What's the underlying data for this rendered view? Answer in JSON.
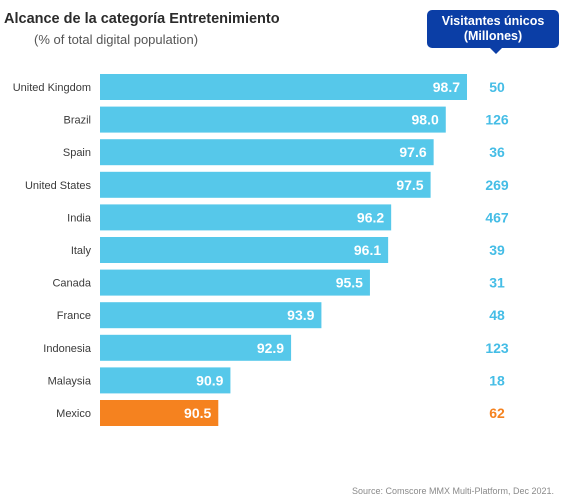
{
  "chart_data": {
    "type": "bar",
    "orientation": "horizontal",
    "title": "Alcance de la categoría Entretenimiento",
    "subtitle": "(% of total digital population)",
    "categories": [
      "United Kingdom",
      "Brazil",
      "Spain",
      "United States",
      "India",
      "Italy",
      "Canada",
      "France",
      "Indonesia",
      "Malaysia",
      "Mexico"
    ],
    "values": [
      98.7,
      98.0,
      97.6,
      97.5,
      96.2,
      96.1,
      95.5,
      93.9,
      92.9,
      90.9,
      90.5
    ],
    "value_labels": [
      "98.7",
      "98.0",
      "97.6",
      "97.5",
      "96.2",
      "96.1",
      "95.5",
      "93.9",
      "92.9",
      "90.9",
      "90.5"
    ],
    "side_header": "Visitantes únicos (Millones)",
    "side_header_lines": [
      "Visitantes únicos",
      "(Millones)"
    ],
    "side_values": [
      "50",
      "126",
      "36",
      "269",
      "467",
      "39",
      "31",
      "48",
      "123",
      "18",
      "62"
    ],
    "highlight_category": "Mexico",
    "xlim": [
      86.6,
      98.7
    ],
    "grid": false,
    "colors": {
      "bar": "#56c8ea",
      "highlight": "#f5821f",
      "side_value": "#45bde6",
      "side_value_highlight": "#f5821f",
      "header_bg": "#0b3ea6"
    },
    "source": "Source: Comscore MMX Multi-Platform, Dec 2021."
  }
}
